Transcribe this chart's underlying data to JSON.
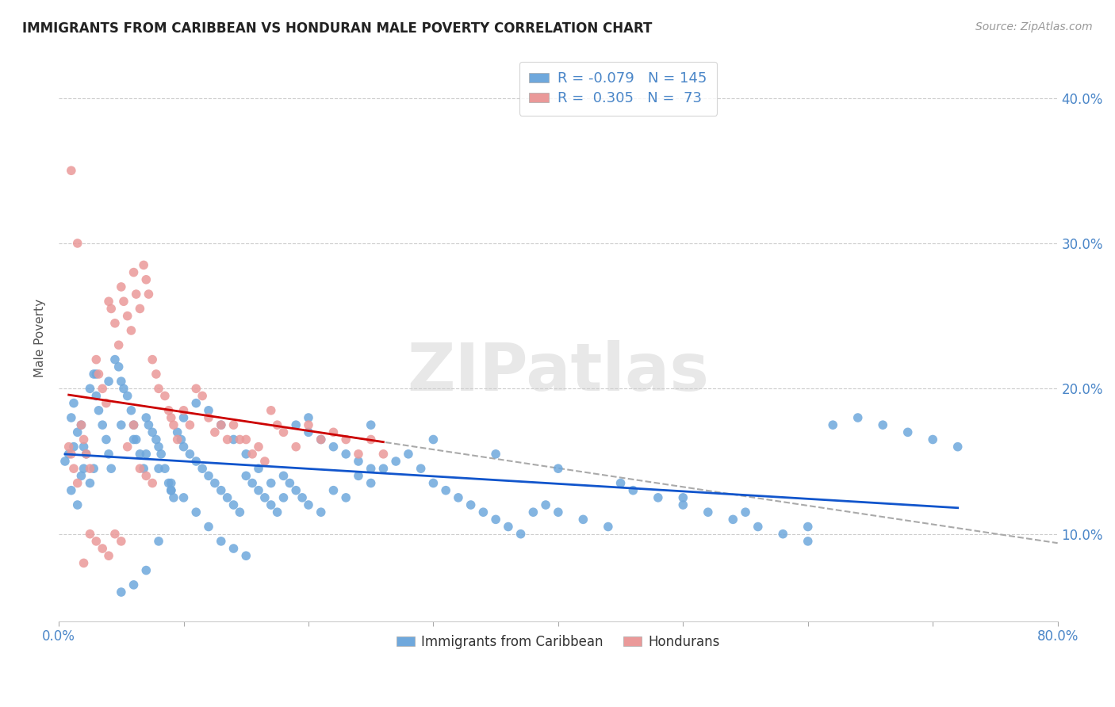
{
  "title": "IMMIGRANTS FROM CARIBBEAN VS HONDURAN MALE POVERTY CORRELATION CHART",
  "source": "Source: ZipAtlas.com",
  "ylabel": "Male Poverty",
  "xmin": 0.0,
  "xmax": 0.8,
  "ymin": 0.04,
  "ymax": 0.43,
  "yticks": [
    0.1,
    0.2,
    0.3,
    0.4
  ],
  "ytick_labels": [
    "10.0%",
    "20.0%",
    "30.0%",
    "40.0%"
  ],
  "xticks": [
    0.0,
    0.1,
    0.2,
    0.3,
    0.4,
    0.5,
    0.6,
    0.7,
    0.8
  ],
  "xtick_labels": [
    "0.0%",
    "",
    "",
    "",
    "",
    "",
    "",
    "",
    "80.0%"
  ],
  "legend_labels": [
    "Immigrants from Caribbean",
    "Hondurans"
  ],
  "blue_color": "#6fa8dc",
  "pink_color": "#ea9999",
  "blue_line_color": "#1155cc",
  "pink_line_color": "#cc0000",
  "dashed_line_color": "#aaaaaa",
  "watermark": "ZIPatlas",
  "R_blue": -0.079,
  "N_blue": 145,
  "R_pink": 0.305,
  "N_pink": 73,
  "blue_scatter_x": [
    0.005,
    0.008,
    0.01,
    0.012,
    0.015,
    0.018,
    0.02,
    0.022,
    0.025,
    0.028,
    0.01,
    0.012,
    0.015,
    0.018,
    0.02,
    0.025,
    0.028,
    0.03,
    0.032,
    0.035,
    0.038,
    0.04,
    0.042,
    0.045,
    0.048,
    0.05,
    0.052,
    0.055,
    0.058,
    0.06,
    0.062,
    0.065,
    0.068,
    0.07,
    0.072,
    0.075,
    0.078,
    0.08,
    0.082,
    0.085,
    0.088,
    0.09,
    0.092,
    0.095,
    0.098,
    0.1,
    0.105,
    0.11,
    0.115,
    0.12,
    0.125,
    0.13,
    0.135,
    0.14,
    0.145,
    0.15,
    0.155,
    0.16,
    0.165,
    0.17,
    0.175,
    0.18,
    0.185,
    0.19,
    0.195,
    0.2,
    0.21,
    0.22,
    0.23,
    0.24,
    0.25,
    0.26,
    0.27,
    0.28,
    0.29,
    0.3,
    0.31,
    0.32,
    0.33,
    0.34,
    0.35,
    0.36,
    0.37,
    0.38,
    0.39,
    0.4,
    0.42,
    0.44,
    0.46,
    0.48,
    0.5,
    0.52,
    0.54,
    0.56,
    0.58,
    0.6,
    0.62,
    0.64,
    0.66,
    0.68,
    0.7,
    0.72,
    0.05,
    0.06,
    0.07,
    0.08,
    0.09,
    0.1,
    0.11,
    0.12,
    0.13,
    0.14,
    0.15,
    0.2,
    0.25,
    0.3,
    0.35,
    0.4,
    0.45,
    0.5,
    0.55,
    0.6,
    0.03,
    0.04,
    0.05,
    0.06,
    0.07,
    0.08,
    0.09,
    0.1,
    0.11,
    0.12,
    0.13,
    0.14,
    0.15,
    0.16,
    0.17,
    0.18,
    0.19,
    0.2,
    0.21,
    0.22,
    0.23,
    0.24,
    0.25
  ],
  "blue_scatter_y": [
    0.15,
    0.155,
    0.13,
    0.16,
    0.12,
    0.14,
    0.145,
    0.155,
    0.135,
    0.145,
    0.18,
    0.19,
    0.17,
    0.175,
    0.16,
    0.2,
    0.21,
    0.195,
    0.185,
    0.175,
    0.165,
    0.155,
    0.145,
    0.22,
    0.215,
    0.205,
    0.2,
    0.195,
    0.185,
    0.175,
    0.165,
    0.155,
    0.145,
    0.18,
    0.175,
    0.17,
    0.165,
    0.16,
    0.155,
    0.145,
    0.135,
    0.13,
    0.125,
    0.17,
    0.165,
    0.16,
    0.155,
    0.15,
    0.145,
    0.14,
    0.135,
    0.13,
    0.125,
    0.12,
    0.115,
    0.14,
    0.135,
    0.13,
    0.125,
    0.12,
    0.115,
    0.14,
    0.135,
    0.13,
    0.125,
    0.12,
    0.115,
    0.13,
    0.125,
    0.14,
    0.135,
    0.145,
    0.15,
    0.155,
    0.145,
    0.135,
    0.13,
    0.125,
    0.12,
    0.115,
    0.11,
    0.105,
    0.1,
    0.115,
    0.12,
    0.115,
    0.11,
    0.105,
    0.13,
    0.125,
    0.12,
    0.115,
    0.11,
    0.105,
    0.1,
    0.095,
    0.175,
    0.18,
    0.175,
    0.17,
    0.165,
    0.16,
    0.175,
    0.165,
    0.155,
    0.145,
    0.135,
    0.125,
    0.115,
    0.105,
    0.095,
    0.09,
    0.085,
    0.18,
    0.175,
    0.165,
    0.155,
    0.145,
    0.135,
    0.125,
    0.115,
    0.105,
    0.21,
    0.205,
    0.06,
    0.065,
    0.075,
    0.095,
    0.13,
    0.18,
    0.19,
    0.185,
    0.175,
    0.165,
    0.155,
    0.145,
    0.135,
    0.125,
    0.175,
    0.17,
    0.165,
    0.16,
    0.155,
    0.15,
    0.145
  ],
  "pink_scatter_x": [
    0.008,
    0.01,
    0.012,
    0.015,
    0.018,
    0.02,
    0.022,
    0.025,
    0.03,
    0.032,
    0.035,
    0.038,
    0.04,
    0.042,
    0.045,
    0.048,
    0.05,
    0.052,
    0.055,
    0.058,
    0.06,
    0.062,
    0.065,
    0.068,
    0.07,
    0.072,
    0.075,
    0.078,
    0.08,
    0.085,
    0.088,
    0.09,
    0.092,
    0.095,
    0.1,
    0.105,
    0.11,
    0.115,
    0.12,
    0.125,
    0.13,
    0.135,
    0.14,
    0.145,
    0.15,
    0.155,
    0.16,
    0.165,
    0.17,
    0.175,
    0.18,
    0.19,
    0.2,
    0.21,
    0.22,
    0.23,
    0.24,
    0.25,
    0.26,
    0.01,
    0.015,
    0.02,
    0.025,
    0.03,
    0.035,
    0.04,
    0.045,
    0.05,
    0.055,
    0.06,
    0.065,
    0.07,
    0.075
  ],
  "pink_scatter_y": [
    0.16,
    0.155,
    0.145,
    0.135,
    0.175,
    0.165,
    0.155,
    0.145,
    0.22,
    0.21,
    0.2,
    0.19,
    0.26,
    0.255,
    0.245,
    0.23,
    0.27,
    0.26,
    0.25,
    0.24,
    0.28,
    0.265,
    0.255,
    0.285,
    0.275,
    0.265,
    0.22,
    0.21,
    0.2,
    0.195,
    0.185,
    0.18,
    0.175,
    0.165,
    0.185,
    0.175,
    0.2,
    0.195,
    0.18,
    0.17,
    0.175,
    0.165,
    0.175,
    0.165,
    0.165,
    0.155,
    0.16,
    0.15,
    0.185,
    0.175,
    0.17,
    0.16,
    0.175,
    0.165,
    0.17,
    0.165,
    0.155,
    0.165,
    0.155,
    0.35,
    0.3,
    0.08,
    0.1,
    0.095,
    0.09,
    0.085,
    0.1,
    0.095,
    0.16,
    0.175,
    0.145,
    0.14,
    0.135
  ]
}
